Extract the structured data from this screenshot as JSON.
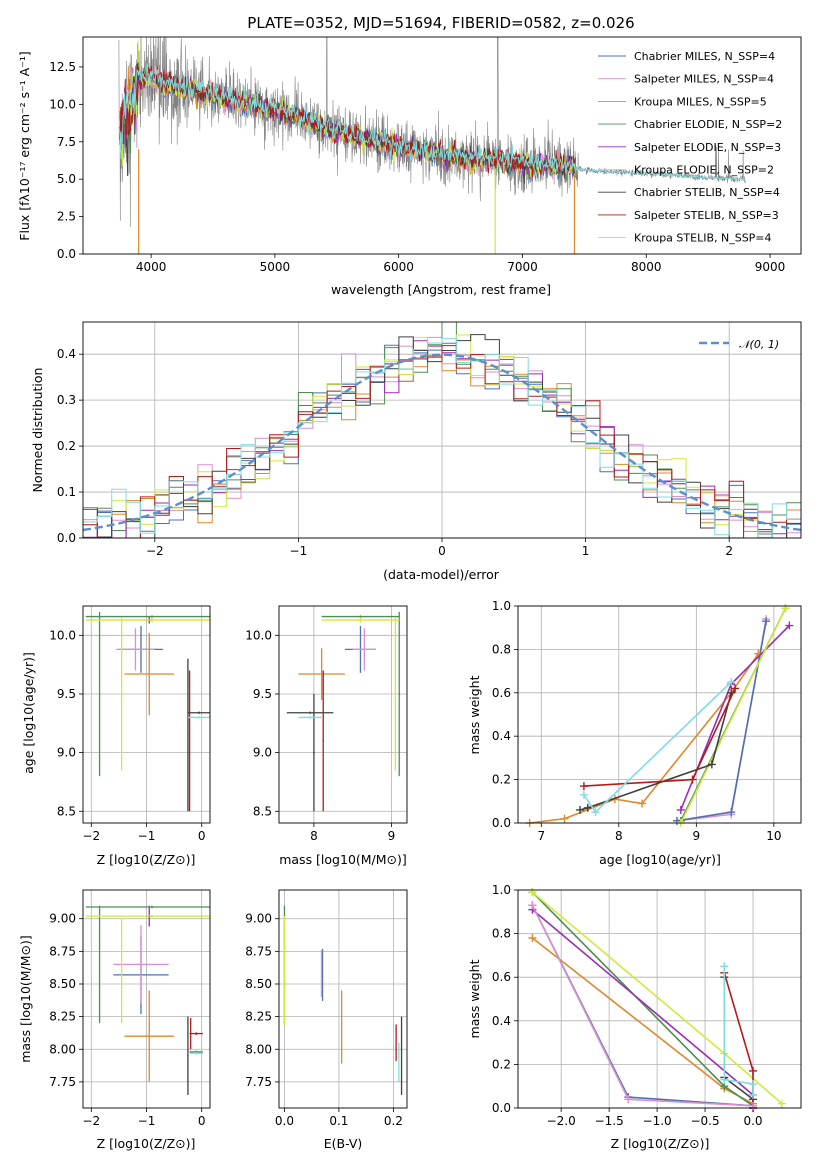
{
  "chart_data": [
    {
      "type": "line",
      "title": "PLATE=0352, MJD=51694, FIBERID=0582, z=0.026",
      "xlabel": "wavelength [Angstrom, rest frame]",
      "ylabel": "Flux [fλ10⁻¹⁷ erg cm⁻² s⁻¹ A⁻¹]",
      "xlim": [
        3450,
        9250
      ],
      "ylim": [
        0,
        14.5
      ],
      "xticks": [
        4000,
        5000,
        6000,
        7000,
        8000,
        9000
      ],
      "yticks": [
        0.0,
        2.5,
        5.0,
        7.5,
        10.0,
        12.5
      ],
      "legend_position": "top-right",
      "series": [
        {
          "name": "Chabrier MILES, N_SSP=4",
          "color": "#4c72b0"
        },
        {
          "name": "Salpeter MILES, N_SSP=4",
          "color": "#dd8ed0"
        },
        {
          "name": "Kroupa MILES, N_SSP=5",
          "color": "#e0882a"
        },
        {
          "name": "Chabrier ELODIE, N_SSP=2",
          "color": "#4d8f52"
        },
        {
          "name": "Salpeter ELODIE, N_SSP=3",
          "color": "#9c2bb6"
        },
        {
          "name": "Kroupa ELODIE, N_SSP=2",
          "color": "#d2e83b"
        },
        {
          "name": "Chabrier STELIB, N_SSP=4",
          "color": "#404040"
        },
        {
          "name": "Salpeter STELIB, N_SSP=3",
          "color": "#b31b1b"
        },
        {
          "name": "Kroupa STELIB, N_SSP=4",
          "color": "#7fdde0"
        }
      ],
      "data_color": "#808080",
      "continuum": {
        "x": [
          3750,
          3900,
          4000,
          4100,
          4500,
          5000,
          5500,
          6000,
          6500,
          7000,
          7400,
          7500,
          8000,
          8500,
          8800
        ],
        "y": [
          8,
          11.6,
          11.8,
          11.4,
          10.6,
          9.6,
          8.2,
          7.1,
          6.4,
          6.0,
          5.8,
          5.6,
          5.4,
          5.1,
          5.0
        ]
      }
    },
    {
      "type": "line",
      "xlabel": "(data-model)/error",
      "ylabel": "Normed distribution",
      "xlim": [
        -2.5,
        2.5
      ],
      "ylim": [
        0,
        0.47
      ],
      "xticks": [
        -2,
        -1,
        0,
        1,
        2
      ],
      "yticks": [
        0.0,
        0.1,
        0.2,
        0.3,
        0.4
      ],
      "legend": "𝒩(0, 1)",
      "legend_position": "top-right",
      "bin_width": 0.1,
      "gaussian": {
        "mean": 0,
        "sigma": 1,
        "color": "#5b8fd0"
      }
    },
    {
      "type": "scatter",
      "xlabel": "Z [log10(Z/Z⊙)]",
      "ylabel": "age  [log10(age/yr)]",
      "xlim": [
        -2.15,
        0.15
      ],
      "ylim": [
        8.4,
        10.25
      ],
      "xticks": [
        -2,
        -1,
        0
      ],
      "yticks": [
        8.5,
        9.0,
        9.5,
        10.0
      ],
      "points": [
        {
          "color": "#4c72b0",
          "x": -1.1,
          "xerr": 0.4,
          "y": 9.88,
          "yerr": 0.2
        },
        {
          "color": "#dd8ed0",
          "x": -1.2,
          "xerr": 0.35,
          "y": 9.88,
          "yerr": 0.18
        },
        {
          "color": "#9c2bb6",
          "x": -0.95,
          "xerr": 0.05,
          "y": 10.13,
          "yerr": 0.03
        },
        {
          "color": "#e0882a",
          "x": -0.95,
          "xerr": 0.45,
          "y": 9.67,
          "yerr": 0.35
        },
        {
          "color": "#4d8f52",
          "x": -0.9,
          "xerr": 1.2,
          "y": 10.16,
          "yerr": 0.01
        },
        {
          "color": "#4d8f52",
          "x": -1.85,
          "xerr": 0.01,
          "y": 9.5,
          "yerr": 0.7
        },
        {
          "color": "#d2e83b",
          "x": -0.9,
          "xerr": 1.2,
          "y": 10.13,
          "yerr": 0.02
        },
        {
          "color": "#d2e83b",
          "x": -1.45,
          "xerr": 0.01,
          "y": 9.5,
          "yerr": 0.65
        },
        {
          "color": "#404040",
          "x": -0.25,
          "xerr": 0.01,
          "y": 9.15,
          "yerr": 0.65
        },
        {
          "color": "#404040",
          "x": -0.05,
          "xerr": 0.2,
          "y": 9.34,
          "yerr": 0.01
        },
        {
          "color": "#b31b1b",
          "x": -0.22,
          "xerr": 0.01,
          "y": 9.1,
          "yerr": 0.6
        },
        {
          "color": "#7fdde0",
          "x": -0.05,
          "xerr": 0.2,
          "y": 9.3,
          "yerr": 0.01
        }
      ]
    },
    {
      "type": "scatter",
      "xlabel": "mass [log10(M/M⊙)]",
      "ylabel": "",
      "xlim": [
        7.55,
        9.2
      ],
      "ylim": [
        8.4,
        10.25
      ],
      "xticks": [
        8,
        9
      ],
      "yticks": [
        8.5,
        9.0,
        9.5,
        10.0
      ],
      "points": [
        {
          "color": "#4c72b0",
          "x": 8.6,
          "xerr": 0.2,
          "y": 9.88,
          "yerr": 0.2
        },
        {
          "color": "#dd8ed0",
          "x": 8.65,
          "xerr": 0.15,
          "y": 9.88,
          "yerr": 0.18
        },
        {
          "color": "#e0882a",
          "x": 8.1,
          "xerr": 0.3,
          "y": 9.67,
          "yerr": 0.22
        },
        {
          "color": "#4d8f52",
          "x": 8.6,
          "xerr": 0.5,
          "y": 10.16,
          "yerr": 0.01
        },
        {
          "color": "#4d8f52",
          "x": 9.1,
          "xerr": 0.01,
          "y": 9.5,
          "yerr": 0.7
        },
        {
          "color": "#d2e83b",
          "x": 8.6,
          "xerr": 0.5,
          "y": 10.13,
          "yerr": 0.02
        },
        {
          "color": "#d2e83b",
          "x": 9.05,
          "xerr": 0.01,
          "y": 9.5,
          "yerr": 0.65
        },
        {
          "color": "#404040",
          "x": 7.95,
          "xerr": 0.3,
          "y": 9.34,
          "yerr": 0.01
        },
        {
          "color": "#404040",
          "x": 8.0,
          "xerr": 0.01,
          "y": 9.0,
          "yerr": 0.5
        },
        {
          "color": "#b31b1b",
          "x": 8.12,
          "xerr": 0.01,
          "y": 9.1,
          "yerr": 0.6
        },
        {
          "color": "#7fdde0",
          "x": 7.95,
          "xerr": 0.15,
          "y": 9.3,
          "yerr": 0.01
        }
      ]
    },
    {
      "type": "line",
      "xlabel": "age  [log10(age/yr)]",
      "ylabel": "mass weight",
      "xlim": [
        6.7,
        10.35
      ],
      "ylim": [
        0,
        1.0
      ],
      "xticks": [
        7,
        8,
        9,
        10
      ],
      "yticks": [
        0.0,
        0.2,
        0.4,
        0.6,
        0.8,
        1.0
      ],
      "series": [
        {
          "color": "#dd8ed0",
          "x": [
            8.75,
            9.45,
            9.9
          ],
          "y": [
            0.01,
            0.04,
            0.94
          ]
        },
        {
          "color": "#4c72b0",
          "x": [
            8.75,
            9.45,
            9.9
          ],
          "y": [
            0.01,
            0.05,
            0.93
          ]
        },
        {
          "color": "#e0882a",
          "x": [
            6.85,
            7.3,
            7.95,
            8.3,
            9.45,
            9.8
          ],
          "y": [
            0.0,
            0.02,
            0.11,
            0.09,
            0.6,
            0.78
          ]
        },
        {
          "color": "#4d8f52",
          "x": [
            8.8,
            10.15
          ],
          "y": [
            0.01,
            0.99
          ]
        },
        {
          "color": "#9c2bb6",
          "x": [
            8.8,
            9.45,
            10.2
          ],
          "y": [
            0.06,
            0.64,
            0.91
          ]
        },
        {
          "color": "#d2e83b",
          "x": [
            8.8,
            10.15
          ],
          "y": [
            0.0,
            0.99
          ]
        },
        {
          "color": "#404040",
          "x": [
            7.5,
            7.6,
            9.2,
            9.45
          ],
          "y": [
            0.06,
            0.07,
            0.27,
            0.6
          ]
        },
        {
          "color": "#b31b1b",
          "x": [
            7.55,
            8.95,
            9.5
          ],
          "y": [
            0.17,
            0.2,
            0.62
          ]
        },
        {
          "color": "#7fdde0",
          "x": [
            7.55,
            7.7,
            9.45
          ],
          "y": [
            0.13,
            0.05,
            0.65
          ]
        }
      ]
    },
    {
      "type": "scatter",
      "xlabel": "Z [log10(Z/Z⊙)]",
      "ylabel": "mass [log10(M/M⊙)]",
      "xlim": [
        -2.15,
        0.15
      ],
      "ylim": [
        7.55,
        9.22
      ],
      "xticks": [
        -2,
        -1,
        0
      ],
      "yticks": [
        7.75,
        8.0,
        8.25,
        8.5,
        8.75,
        9.0
      ],
      "points": [
        {
          "color": "#4c72b0",
          "x": -1.1,
          "xerr": 0.5,
          "y": 8.57,
          "yerr": 0.3
        },
        {
          "color": "#dd8ed0",
          "x": -1.1,
          "xerr": 0.5,
          "y": 8.65,
          "yerr": 0.3
        },
        {
          "color": "#9c2bb6",
          "x": -0.95,
          "xerr": 0.05,
          "y": 9.02,
          "yerr": 0.08
        },
        {
          "color": "#e0882a",
          "x": -0.95,
          "xerr": 0.45,
          "y": 8.1,
          "yerr": 0.35
        },
        {
          "color": "#4d8f52",
          "x": -0.9,
          "xerr": 1.2,
          "y": 9.09,
          "yerr": 0.01
        },
        {
          "color": "#4d8f52",
          "x": -1.85,
          "xerr": 0.01,
          "y": 8.65,
          "yerr": 0.45
        },
        {
          "color": "#d2e83b",
          "x": -0.9,
          "xerr": 1.2,
          "y": 9.02,
          "yerr": 0.01
        },
        {
          "color": "#d2e83b",
          "x": -1.45,
          "xerr": 0.01,
          "y": 8.6,
          "yerr": 0.4
        },
        {
          "color": "#404040",
          "x": -0.25,
          "xerr": 0.01,
          "y": 7.95,
          "yerr": 0.3
        },
        {
          "color": "#b31b1b",
          "x": -0.2,
          "xerr": 0.01,
          "y": 8.12,
          "yerr": 0.12
        },
        {
          "color": "#b31b1b",
          "x": -0.1,
          "xerr": 0.12,
          "y": 8.12,
          "yerr": 0.01
        },
        {
          "color": "#4d8f52",
          "x": -0.1,
          "xerr": 0.12,
          "y": 7.98,
          "yerr": 0.01
        },
        {
          "color": "#7fdde0",
          "x": -0.1,
          "xerr": 0.12,
          "y": 7.97,
          "yerr": 0.01
        }
      ]
    },
    {
      "type": "scatter",
      "xlabel": "E(B-V)",
      "ylabel": "",
      "xlim": [
        -0.01,
        0.225
      ],
      "ylim": [
        7.55,
        9.22
      ],
      "xticks": [
        0.0,
        0.1,
        0.2
      ],
      "yticks": [
        7.75,
        8.0,
        8.25,
        8.5,
        8.75,
        9.0
      ],
      "points": [
        {
          "color": "#4d8f52",
          "x": 0.0,
          "xerr": 0.0,
          "y": 8.65,
          "yerr": 0.45
        },
        {
          "color": "#d2e83b",
          "x": 0.0,
          "xerr": 0.0,
          "y": 8.6,
          "yerr": 0.42
        },
        {
          "color": "#4c72b0",
          "x": 0.07,
          "xerr": 0.0,
          "y": 8.57,
          "yerr": 0.2
        },
        {
          "color": "#dd8ed0",
          "x": 0.068,
          "xerr": 0.0,
          "y": 8.58,
          "yerr": 0.18
        },
        {
          "color": "#e0882a",
          "x": 0.105,
          "xerr": 0.0,
          "y": 8.17,
          "yerr": 0.28
        },
        {
          "color": "#b31b1b",
          "x": 0.205,
          "xerr": 0.0,
          "y": 8.05,
          "yerr": 0.14
        },
        {
          "color": "#404040",
          "x": 0.215,
          "xerr": 0.0,
          "y": 7.95,
          "yerr": 0.3
        },
        {
          "color": "#7fdde0",
          "x": 0.21,
          "xerr": 0.0,
          "y": 7.9,
          "yerr": 0.15
        }
      ]
    },
    {
      "type": "line",
      "xlabel": "Z [log10(Z/Z⊙)]",
      "ylabel": "mass weight",
      "xlim": [
        -2.45,
        0.5
      ],
      "ylim": [
        0,
        1.0
      ],
      "xticks": [
        -2.0,
        -1.5,
        -1.0,
        -0.5,
        0.0
      ],
      "yticks": [
        0.0,
        0.2,
        0.4,
        0.6,
        0.8,
        1.0
      ],
      "series": [
        {
          "color": "#e0882a",
          "x": [
            -2.3,
            -0.3,
            0.0
          ],
          "y": [
            0.78,
            0.09,
            0.02
          ]
        },
        {
          "color": "#4d8f52",
          "x": [
            -2.3,
            -0.3,
            0.0
          ],
          "y": [
            0.99,
            0.1,
            0.01
          ]
        },
        {
          "color": "#d2e83b",
          "x": [
            -2.3,
            -0.3,
            0.3
          ],
          "y": [
            0.99,
            0.25,
            0.02
          ]
        },
        {
          "color": "#9c2bb6",
          "x": [
            -2.3,
            0.0,
            0.0
          ],
          "y": [
            0.91,
            0.06,
            0.0
          ]
        },
        {
          "color": "#404040",
          "x": [
            -0.3,
            -0.3,
            0.0
          ],
          "y": [
            0.6,
            0.14,
            0.04
          ]
        },
        {
          "color": "#b31b1b",
          "x": [
            -0.3,
            0.0,
            0.0
          ],
          "y": [
            0.62,
            0.17,
            0.0
          ]
        },
        {
          "color": "#7fdde0",
          "x": [
            -0.3,
            -0.3,
            0.0,
            0.0
          ],
          "y": [
            0.65,
            0.13,
            0.11,
            0.06
          ]
        },
        {
          "color": "#4c72b0",
          "x": [
            -2.3,
            -1.3,
            0.0
          ],
          "y": [
            0.93,
            0.05,
            0.01
          ]
        },
        {
          "color": "#dd8ed0",
          "x": [
            -2.3,
            -1.3,
            0.0
          ],
          "y": [
            0.93,
            0.04,
            0.01
          ]
        }
      ]
    }
  ]
}
